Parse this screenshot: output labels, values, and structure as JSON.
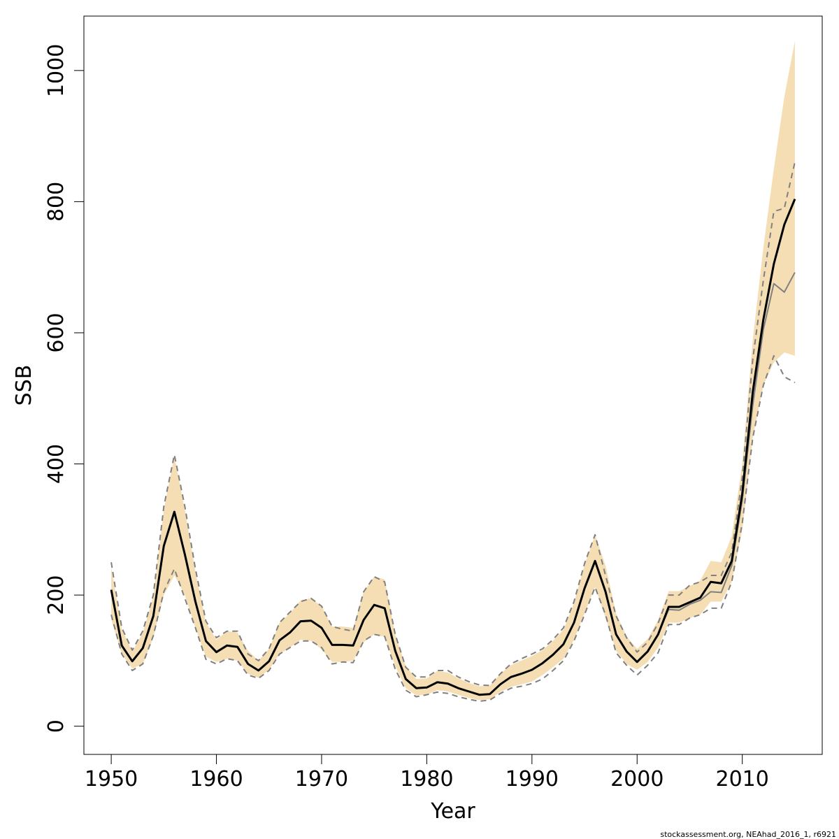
{
  "chart_data": {
    "type": "line",
    "title": "",
    "xlabel": "Year",
    "ylabel": "SSB",
    "xlim": [
      1947.4,
      2017.6
    ],
    "ylim": [
      -43,
      1083
    ],
    "x_ticks": [
      1950,
      1960,
      1970,
      1980,
      1990,
      2000,
      2010
    ],
    "y_ticks": [
      0,
      200,
      400,
      600,
      800,
      1000
    ],
    "x_tick_labels": [
      "1950",
      "1960",
      "1970",
      "1980",
      "1990",
      "2000",
      "2010"
    ],
    "y_tick_labels": [
      "0",
      "200",
      "400",
      "600",
      "800",
      "1000"
    ],
    "grid": false,
    "legend": "none",
    "x": [
      1950,
      1951,
      1952,
      1953,
      1954,
      1955,
      1956,
      1957,
      1958,
      1959,
      1960,
      1961,
      1962,
      1963,
      1964,
      1965,
      1966,
      1967,
      1968,
      1969,
      1970,
      1971,
      1972,
      1973,
      1974,
      1975,
      1976,
      1977,
      1978,
      1979,
      1980,
      1981,
      1982,
      1983,
      1984,
      1985,
      1986,
      1987,
      1988,
      1989,
      1990,
      1991,
      1992,
      1993,
      1994,
      1995,
      1996,
      1997,
      1998,
      1999,
      2000,
      2001,
      2002,
      2003,
      2004,
      2005,
      2006,
      2007,
      2008,
      2009,
      2010,
      2011,
      2012,
      2013,
      2014,
      2015
    ],
    "series": [
      {
        "role": "estimate",
        "color": "#000000",
        "values": [
          208,
          123,
          99,
          119,
          168,
          275,
          327,
          262,
          190,
          130,
          113,
          123,
          121,
          95,
          85,
          99,
          131,
          143,
          160,
          161,
          150,
          124,
          124,
          123,
          162,
          185,
          180,
          115,
          72,
          58,
          59,
          67,
          65,
          58,
          53,
          48,
          49,
          64,
          75,
          80,
          86,
          96,
          109,
          125,
          158,
          210,
          252,
          205,
          140,
          114,
          98,
          114,
          140,
          182,
          182,
          189,
          196,
          220,
          218,
          252,
          355,
          510,
          620,
          705,
          765,
          804
        ]
      },
      {
        "role": "confidence-band",
        "color": "#f5deb3",
        "low": [
          163,
          110,
          88,
          95,
          135,
          200,
          230,
          200,
          150,
          106,
          98,
          103,
          100,
          80,
          74,
          86,
          110,
          120,
          132,
          130,
          117,
          98,
          98,
          100,
          128,
          140,
          136,
          92,
          58,
          47,
          48,
          55,
          53,
          48,
          43,
          40,
          41,
          52,
          60,
          64,
          68,
          78,
          90,
          103,
          132,
          172,
          212,
          165,
          115,
          95,
          86,
          98,
          120,
          158,
          158,
          165,
          170,
          190,
          190,
          220,
          300,
          440,
          520,
          555,
          570,
          565
        ]
      },
      {
        "role": "confidence-band-high",
        "color": "#f5deb3",
        "high": [
          242,
          148,
          114,
          142,
          198,
          330,
          412,
          330,
          236,
          158,
          132,
          145,
          143,
          115,
          100,
          118,
          158,
          172,
          192,
          195,
          183,
          152,
          152,
          150,
          205,
          228,
          224,
          140,
          92,
          72,
          73,
          84,
          82,
          73,
          66,
          61,
          62,
          80,
          93,
          100,
          107,
          116,
          130,
          147,
          188,
          246,
          292,
          245,
          172,
          137,
          118,
          133,
          162,
          206,
          206,
          214,
          222,
          252,
          250,
          290,
          400,
          590,
          730,
          850,
          960,
          1045
        ]
      },
      {
        "role": "retro-run",
        "color": "#808080",
        "values": [
          208,
          123,
          99,
          119,
          168,
          275,
          327,
          262,
          190,
          130,
          113,
          123,
          121,
          95,
          85,
          99,
          131,
          143,
          160,
          161,
          150,
          124,
          124,
          123,
          162,
          185,
          180,
          115,
          72,
          58,
          59,
          67,
          65,
          58,
          53,
          48,
          49,
          64,
          75,
          80,
          86,
          96,
          109,
          125,
          158,
          210,
          252,
          205,
          140,
          114,
          98,
          114,
          140,
          178,
          177,
          186,
          192,
          205,
          204,
          245,
          345,
          490,
          605,
          675,
          662,
          692
        ]
      },
      {
        "role": "retro-upper",
        "color": "#808080",
        "values": [
          250,
          150,
          116,
          145,
          200,
          335,
          414,
          335,
          240,
          160,
          135,
          145,
          145,
          110,
          100,
          118,
          158,
          174,
          190,
          195,
          183,
          152,
          148,
          145,
          205,
          228,
          220,
          140,
          90,
          75,
          75,
          85,
          85,
          75,
          68,
          63,
          62,
          80,
          95,
          103,
          110,
          118,
          132,
          150,
          190,
          248,
          292,
          230,
          168,
          135,
          113,
          128,
          157,
          200,
          200,
          215,
          220,
          230,
          230,
          265,
          380,
          560,
          680,
          785,
          790,
          860
        ]
      },
      {
        "role": "retro-lower",
        "color": "#808080",
        "values": [
          170,
          110,
          85,
          95,
          138,
          205,
          240,
          195,
          150,
          102,
          95,
          103,
          100,
          78,
          73,
          85,
          110,
          120,
          130,
          130,
          120,
          95,
          98,
          97,
          130,
          140,
          137,
          87,
          55,
          45,
          48,
          52,
          50,
          45,
          41,
          38,
          40,
          50,
          58,
          61,
          65,
          72,
          85,
          100,
          130,
          170,
          212,
          170,
          112,
          93,
          78,
          93,
          112,
          155,
          155,
          165,
          170,
          180,
          180,
          220,
          310,
          440,
          520,
          565,
          533,
          524
        ]
      }
    ]
  },
  "footer": {
    "note": "stockassessment.org, NEAhad_2016_1, r6921"
  }
}
